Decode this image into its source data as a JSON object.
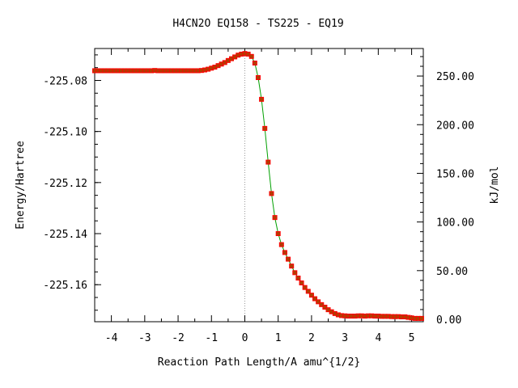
{
  "chart_data": {
    "type": "line",
    "title": "H4CN2O   EQ158 - TS225 - EQ19",
    "xlabel": "Reaction Path Length/A amu^{1/2}",
    "ylabel": "Energy/Hartree",
    "y2label": "kJ/mol",
    "xlim": [
      -4.5,
      5.35
    ],
    "ylim": [
      -225.1745,
      -225.0675
    ],
    "y2lim": [
      -2.5,
      278.3
    ],
    "xticks": [
      "-4",
      "-3",
      "-2",
      "-1",
      "0",
      "1",
      "2",
      "3",
      "4",
      "5"
    ],
    "xtick_values": [
      -4,
      -3,
      -2,
      -1,
      0,
      1,
      2,
      3,
      4,
      5
    ],
    "yticks": [
      "-225.08",
      "-225.10",
      "-225.12",
      "-225.14",
      "-225.16"
    ],
    "ytick_values": [
      -225.08,
      -225.1,
      -225.12,
      -225.14,
      -225.16
    ],
    "y2ticks": [
      "0.00",
      "50.00",
      "100.00",
      "150.00",
      "200.00",
      "250.00"
    ],
    "y2tick_values": [
      0,
      50,
      100,
      150,
      200,
      250
    ],
    "ts_marker_x": 0,
    "colors": {
      "branch_left": "#ff0000",
      "branch_right": "#00a000",
      "marker_fill": "#b04000",
      "marker_edge": "#ff0000",
      "ts_line": "#999999"
    },
    "series": [
      {
        "x": [
          -4.5,
          -4.4,
          -4.3,
          -4.2,
          -4.1,
          -4.0,
          -3.9,
          -3.8,
          -3.7,
          -3.6,
          -3.5,
          -3.4,
          -3.3,
          -3.2,
          -3.1,
          -3.0,
          -2.9,
          -2.8,
          -2.7,
          -2.6,
          -2.5,
          -2.4,
          -2.3,
          -2.2,
          -2.1,
          -2.0,
          -1.9,
          -1.8,
          -1.7,
          -1.6,
          -1.5,
          -1.4,
          -1.3,
          -1.2,
          -1.1,
          -1.0,
          -0.9,
          -0.8,
          -0.7,
          -0.6,
          -0.5,
          -0.4,
          -0.3,
          -0.2,
          -0.1,
          0.0
        ],
        "y": [
          -225.0762,
          -225.0762,
          -225.0762,
          -225.0762,
          -225.0762,
          -225.0762,
          -225.0762,
          -225.0762,
          -225.0762,
          -225.0762,
          -225.0762,
          -225.0762,
          -225.0762,
          -225.0762,
          -225.0762,
          -225.0762,
          -225.0762,
          -225.0762,
          -225.0761,
          -225.0762,
          -225.0762,
          -225.0762,
          -225.0762,
          -225.0762,
          -225.0762,
          -225.0762,
          -225.0762,
          -225.0762,
          -225.0762,
          -225.0762,
          -225.0762,
          -225.0762,
          -225.0761,
          -225.0759,
          -225.0756,
          -225.0752,
          -225.0748,
          -225.0742,
          -225.0736,
          -225.073,
          -225.0722,
          -225.0715,
          -225.0708,
          -225.0701,
          -225.0697,
          -225.0695
        ]
      },
      {
        "x": [
          0.0,
          0.1,
          0.2,
          0.3,
          0.4,
          0.5,
          0.6,
          0.7,
          0.8,
          0.9,
          1.0,
          1.1,
          1.2,
          1.3,
          1.4,
          1.5,
          1.6,
          1.7,
          1.8,
          1.9,
          2.0,
          2.1,
          2.2,
          2.3,
          2.4,
          2.5,
          2.6,
          2.7,
          2.8,
          2.9,
          3.0,
          3.1,
          3.2,
          3.3,
          3.4,
          3.5,
          3.6,
          3.7,
          3.8,
          3.9,
          4.0,
          4.1,
          4.2,
          4.3,
          4.4,
          4.5,
          4.6,
          4.7,
          4.8,
          4.9,
          5.0,
          5.1,
          5.2,
          5.3
        ],
        "y": [
          -225.0695,
          -225.0697,
          -225.0706,
          -225.0732,
          -225.0789,
          -225.0874,
          -225.0988,
          -225.112,
          -225.1243,
          -225.1337,
          -225.14,
          -225.1443,
          -225.1474,
          -225.15,
          -225.1527,
          -225.1553,
          -225.1574,
          -225.1593,
          -225.1611,
          -225.1626,
          -225.1641,
          -225.1655,
          -225.1667,
          -225.1678,
          -225.1688,
          -225.1698,
          -225.1706,
          -225.1713,
          -225.1718,
          -225.1721,
          -225.1722,
          -225.1723,
          -225.1723,
          -225.1723,
          -225.1722,
          -225.1722,
          -225.1723,
          -225.1722,
          -225.1722,
          -225.1723,
          -225.1723,
          -225.1724,
          -225.1724,
          -225.1724,
          -225.1725,
          -225.1725,
          -225.1725,
          -225.1726,
          -225.1726,
          -225.1728,
          -225.173,
          -225.1732,
          -225.1732,
          -225.1732
        ]
      }
    ]
  }
}
